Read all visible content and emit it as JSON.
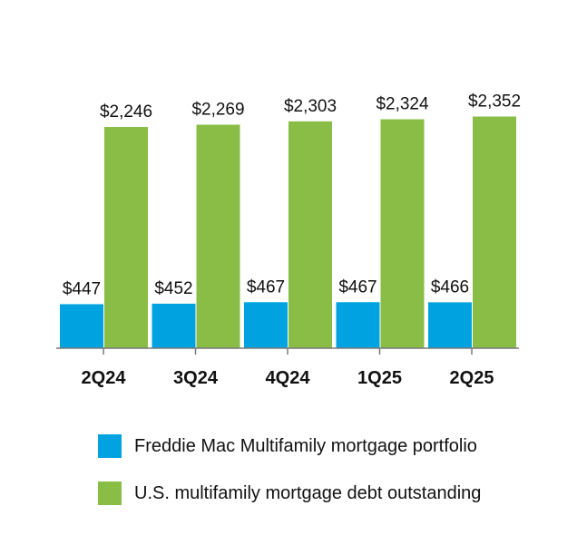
{
  "chart_data": {
    "type": "bar",
    "categories": [
      "2Q24",
      "3Q24",
      "4Q24",
      "1Q25",
      "2Q25"
    ],
    "series": [
      {
        "name": "Freddie Mac Multifamily mortgage portfolio",
        "values": [
          447,
          452,
          467,
          467,
          466
        ],
        "labels": [
          "$447",
          "$452",
          "$467",
          "$467",
          "$466"
        ],
        "color": "#00a3e0"
      },
      {
        "name": "U.S. multifamily mortgage debt outstanding",
        "values": [
          2246,
          2269,
          2303,
          2324,
          2352
        ],
        "labels": [
          "$2,246",
          "$2,269",
          "$2,303",
          "$2,324",
          "$2,352"
        ],
        "color": "#8abd45"
      }
    ],
    "title": "",
    "xlabel": "",
    "ylabel": "",
    "ylim": [
      0,
      2550
    ],
    "grid": false,
    "legend_position": "bottom"
  }
}
